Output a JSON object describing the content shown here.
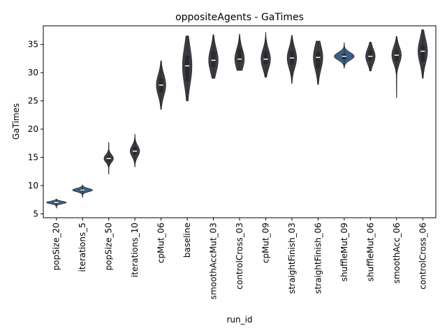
{
  "chart_data": {
    "type": "violin",
    "title": "oppositeAgents - GaTimes",
    "xlabel": "run_id",
    "ylabel": "GaTimes",
    "ylim": [
      4.3,
      38.3
    ],
    "yticks": [
      5,
      10,
      15,
      20,
      25,
      30,
      35
    ],
    "grid": false,
    "legend": "none",
    "colors": {
      "violin": "#3b3f45",
      "violin_light": "#3a5f8a",
      "median": "#ffffff",
      "axis": "#000000"
    },
    "categories": [
      "popSize_20",
      "iterations_5",
      "popSize_50",
      "iterations_10",
      "cpMut_06",
      "baseline",
      "smoothAccMut_03",
      "controlCross_03",
      "cpMut_09",
      "straightFinish_03",
      "straightFinish_06",
      "shuffleMut_09",
      "shuffleMut_06",
      "smoothAcc_06",
      "controlCross_06"
    ],
    "series": [
      {
        "run_id": "popSize_20",
        "min": 6.0,
        "q1": 6.8,
        "median": 7.0,
        "q3": 7.1,
        "max": 7.6
      },
      {
        "run_id": "iterations_5",
        "min": 7.9,
        "q1": 9.0,
        "median": 9.2,
        "q3": 9.4,
        "max": 10.1
      },
      {
        "run_id": "popSize_50",
        "min": 12.0,
        "q1": 14.3,
        "median": 14.8,
        "q3": 15.2,
        "max": 17.7
      },
      {
        "run_id": "iterations_10",
        "min": 13.3,
        "q1": 15.5,
        "median": 16.1,
        "q3": 16.8,
        "max": 19.1
      },
      {
        "run_id": "cpMut_06",
        "min": 23.5,
        "q1": 26.5,
        "median": 27.8,
        "q3": 29.0,
        "max": 32.1
      },
      {
        "run_id": "baseline",
        "min": 25.0,
        "q1": 28.5,
        "median": 31.2,
        "q3": 33.0,
        "max": 36.5
      },
      {
        "run_id": "smoothAccMut_03",
        "min": 29.0,
        "q1": 31.0,
        "median": 32.2,
        "q3": 33.8,
        "max": 36.7
      },
      {
        "run_id": "controlCross_03",
        "min": 30.4,
        "q1": 31.8,
        "median": 32.4,
        "q3": 34.2,
        "max": 36.8
      },
      {
        "run_id": "cpMut_09",
        "min": 29.2,
        "q1": 31.5,
        "median": 32.4,
        "q3": 33.8,
        "max": 37.1
      },
      {
        "run_id": "straightFinish_03",
        "min": 28.1,
        "q1": 31.4,
        "median": 32.6,
        "q3": 33.8,
        "max": 36.6
      },
      {
        "run_id": "straightFinish_06",
        "min": 27.9,
        "q1": 30.8,
        "median": 32.7,
        "q3": 33.7,
        "max": 35.6
      },
      {
        "run_id": "shuffleMut_09",
        "min": 30.8,
        "q1": 32.4,
        "median": 32.9,
        "q3": 33.3,
        "max": 35.3
      },
      {
        "run_id": "shuffleMut_06",
        "min": 30.3,
        "q1": 32.2,
        "median": 32.9,
        "q3": 34.0,
        "max": 35.4
      },
      {
        "run_id": "smoothAcc_06",
        "min": 25.5,
        "q1": 32.0,
        "median": 33.1,
        "q3": 34.0,
        "max": 36.4
      },
      {
        "run_id": "controlCross_06",
        "min": 29.0,
        "q1": 32.0,
        "median": 33.8,
        "q3": 34.9,
        "max": 37.6
      }
    ]
  }
}
